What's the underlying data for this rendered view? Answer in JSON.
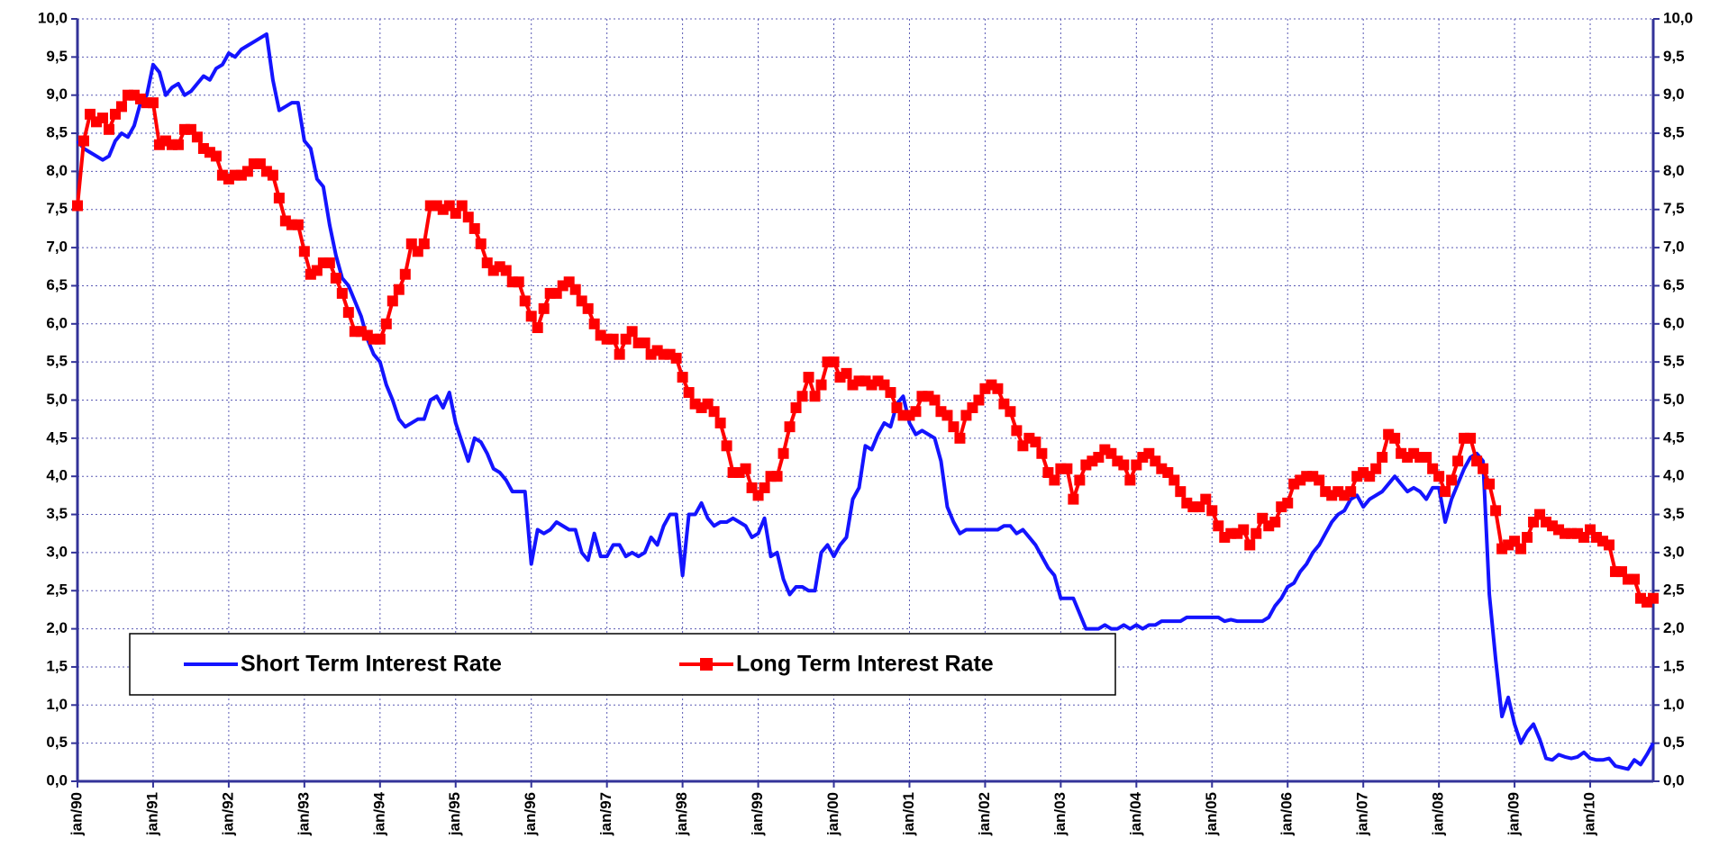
{
  "chart_data": {
    "type": "line",
    "categories": [
      "jan/90",
      null,
      null,
      null,
      null,
      null,
      null,
      null,
      null,
      null,
      null,
      null,
      "jan/91",
      null,
      null,
      null,
      null,
      null,
      null,
      null,
      null,
      null,
      null,
      null,
      "jan/92",
      null,
      null,
      null,
      null,
      null,
      null,
      null,
      null,
      null,
      null,
      null,
      "jan/93",
      null,
      null,
      null,
      null,
      null,
      null,
      null,
      null,
      null,
      null,
      null,
      "jan/94",
      null,
      null,
      null,
      null,
      null,
      null,
      null,
      null,
      null,
      null,
      null,
      "jan/95",
      null,
      null,
      null,
      null,
      null,
      null,
      null,
      null,
      null,
      null,
      null,
      "jan/96",
      null,
      null,
      null,
      null,
      null,
      null,
      null,
      null,
      null,
      null,
      null,
      "jan/97",
      null,
      null,
      null,
      null,
      null,
      null,
      null,
      null,
      null,
      null,
      null,
      "jan/98",
      null,
      null,
      null,
      null,
      null,
      null,
      null,
      null,
      null,
      null,
      null,
      "jan/99",
      null,
      null,
      null,
      null,
      null,
      null,
      null,
      null,
      null,
      null,
      null,
      "jan/00",
      null,
      null,
      null,
      null,
      null,
      null,
      null,
      null,
      null,
      null,
      null,
      "jan/01",
      null,
      null,
      null,
      null,
      null,
      null,
      null,
      null,
      null,
      null,
      null,
      "jan/02",
      null,
      null,
      null,
      null,
      null,
      null,
      null,
      null,
      null,
      null,
      null,
      "jan/03",
      null,
      null,
      null,
      null,
      null,
      null,
      null,
      null,
      null,
      null,
      null,
      "jan/04",
      null,
      null,
      null,
      null,
      null,
      null,
      null,
      null,
      null,
      null,
      null,
      "jan/05",
      null,
      null,
      null,
      null,
      null,
      null,
      null,
      null,
      null,
      null,
      null,
      "jan/06",
      null,
      null,
      null,
      null,
      null,
      null,
      null,
      null,
      null,
      null,
      null,
      "jan/07",
      null,
      null,
      null,
      null,
      null,
      null,
      null,
      null,
      null,
      null,
      null,
      "jan/08",
      null,
      null,
      null,
      null,
      null,
      null,
      null,
      null,
      null,
      null,
      null,
      "jan/09",
      null,
      null,
      null,
      null,
      null,
      null,
      null,
      null,
      null,
      null,
      null,
      "jan/10",
      null,
      null,
      null,
      null,
      null,
      null,
      null,
      null,
      null,
      null
    ],
    "series": [
      {
        "name": "Short Term Interest Rate",
        "color": "#1414ff",
        "marker": "none",
        "values": [
          8.4,
          8.3,
          8.25,
          8.2,
          8.15,
          8.2,
          8.4,
          8.5,
          8.45,
          8.6,
          8.9,
          9.0,
          9.4,
          9.3,
          9.0,
          9.1,
          9.15,
          9.0,
          9.05,
          9.15,
          9.25,
          9.2,
          9.35,
          9.4,
          9.55,
          9.5,
          9.6,
          9.65,
          9.7,
          9.75,
          9.8,
          9.2,
          8.8,
          8.85,
          8.9,
          8.9,
          8.4,
          8.3,
          7.9,
          7.8,
          7.3,
          6.9,
          6.6,
          6.5,
          6.3,
          6.1,
          5.8,
          5.6,
          5.5,
          5.2,
          5.0,
          4.75,
          4.65,
          4.7,
          4.75,
          4.75,
          5.0,
          5.05,
          4.9,
          5.1,
          4.7,
          4.45,
          4.2,
          4.5,
          4.45,
          4.3,
          4.1,
          4.05,
          3.95,
          3.8,
          3.8,
          3.8,
          2.85,
          3.3,
          3.25,
          3.3,
          3.4,
          3.35,
          3.3,
          3.3,
          3.0,
          2.9,
          3.25,
          2.95,
          2.95,
          3.1,
          3.1,
          2.95,
          3.0,
          2.95,
          3.0,
          3.2,
          3.1,
          3.35,
          3.5,
          3.5,
          2.7,
          3.5,
          3.5,
          3.65,
          3.45,
          3.35,
          3.4,
          3.4,
          3.45,
          3.4,
          3.35,
          3.2,
          3.25,
          3.45,
          2.95,
          3.0,
          2.65,
          2.45,
          2.55,
          2.55,
          2.5,
          2.5,
          3.0,
          3.1,
          2.95,
          3.1,
          3.2,
          3.7,
          3.85,
          4.4,
          4.35,
          4.55,
          4.7,
          4.65,
          4.95,
          5.05,
          4.7,
          4.55,
          4.6,
          4.55,
          4.5,
          4.2,
          3.6,
          3.4,
          3.25,
          3.3,
          3.3,
          3.3,
          3.3,
          3.3,
          3.3,
          3.35,
          3.35,
          3.25,
          3.3,
          3.2,
          3.1,
          2.95,
          2.8,
          2.7,
          2.4,
          2.4,
          2.4,
          2.2,
          2.0,
          2.0,
          2.0,
          2.05,
          2.0,
          2.0,
          2.05,
          2.0,
          2.05,
          2.0,
          2.05,
          2.05,
          2.1,
          2.1,
          2.1,
          2.1,
          2.15,
          2.15,
          2.15,
          2.15,
          2.15,
          2.15,
          2.1,
          2.12,
          2.1,
          2.1,
          2.1,
          2.1,
          2.1,
          2.15,
          2.3,
          2.4,
          2.55,
          2.6,
          2.75,
          2.85,
          3.0,
          3.1,
          3.25,
          3.4,
          3.5,
          3.55,
          3.7,
          3.75,
          3.6,
          3.7,
          3.75,
          3.8,
          3.9,
          4.0,
          3.9,
          3.8,
          3.85,
          3.8,
          3.7,
          3.85,
          3.85,
          3.4,
          3.7,
          3.9,
          4.1,
          4.25,
          4.3,
          4.2,
          2.45,
          1.6,
          0.85,
          1.1,
          0.75,
          0.5,
          0.65,
          0.75,
          0.55,
          0.3,
          0.28,
          0.35,
          0.32,
          0.3,
          0.32,
          0.38,
          0.3,
          0.28,
          0.28,
          0.3,
          0.2,
          0.18,
          0.16,
          0.28,
          0.22,
          0.35,
          0.5
        ]
      },
      {
        "name": "Long Term Interest Rate",
        "color": "#ff0000",
        "marker": "square",
        "values": [
          7.55,
          8.4,
          8.75,
          8.65,
          8.7,
          8.55,
          8.75,
          8.85,
          9.0,
          9.0,
          8.95,
          8.9,
          8.9,
          8.35,
          8.4,
          8.35,
          8.35,
          8.55,
          8.55,
          8.45,
          8.3,
          8.25,
          8.2,
          7.95,
          7.9,
          7.95,
          7.95,
          8.0,
          8.1,
          8.1,
          8.0,
          7.95,
          7.65,
          7.35,
          7.3,
          7.3,
          6.95,
          6.65,
          6.7,
          6.8,
          6.8,
          6.6,
          6.4,
          6.15,
          5.9,
          5.9,
          5.85,
          5.8,
          5.8,
          6.0,
          6.3,
          6.45,
          6.65,
          7.05,
          6.95,
          7.05,
          7.55,
          7.55,
          7.5,
          7.55,
          7.45,
          7.55,
          7.4,
          7.25,
          7.05,
          6.8,
          6.7,
          6.75,
          6.7,
          6.55,
          6.55,
          6.3,
          6.1,
          5.95,
          6.2,
          6.4,
          6.4,
          6.5,
          6.55,
          6.45,
          6.3,
          6.2,
          6.0,
          5.85,
          5.8,
          5.8,
          5.6,
          5.8,
          5.9,
          5.75,
          5.75,
          5.6,
          5.65,
          5.6,
          5.6,
          5.55,
          5.3,
          5.1,
          4.95,
          4.9,
          4.95,
          4.85,
          4.7,
          4.4,
          4.05,
          4.05,
          4.1,
          3.85,
          3.75,
          3.85,
          4.0,
          4.0,
          4.3,
          4.65,
          4.9,
          5.05,
          5.3,
          5.05,
          5.2,
          5.5,
          5.5,
          5.3,
          5.35,
          5.2,
          5.25,
          5.25,
          5.2,
          5.25,
          5.2,
          5.1,
          4.9,
          4.8,
          4.8,
          4.85,
          5.05,
          5.05,
          5.0,
          4.85,
          4.8,
          4.65,
          4.5,
          4.8,
          4.9,
          5.0,
          5.15,
          5.2,
          5.15,
          4.95,
          4.85,
          4.6,
          4.4,
          4.5,
          4.45,
          4.3,
          4.05,
          3.95,
          4.1,
          4.1,
          3.7,
          3.95,
          4.15,
          4.2,
          4.25,
          4.35,
          4.3,
          4.2,
          4.15,
          3.95,
          4.15,
          4.25,
          4.3,
          4.2,
          4.1,
          4.05,
          3.95,
          3.8,
          3.65,
          3.6,
          3.6,
          3.7,
          3.55,
          3.35,
          3.2,
          3.25,
          3.25,
          3.3,
          3.1,
          3.25,
          3.45,
          3.35,
          3.4,
          3.6,
          3.65,
          3.9,
          3.95,
          4.0,
          4.0,
          3.95,
          3.8,
          3.75,
          3.8,
          3.75,
          3.8,
          4.0,
          4.05,
          4.0,
          4.1,
          4.25,
          4.55,
          4.5,
          4.3,
          4.25,
          4.3,
          4.25,
          4.25,
          4.1,
          4.0,
          3.8,
          3.95,
          4.2,
          4.5,
          4.5,
          4.2,
          4.1,
          3.9,
          3.55,
          3.05,
          3.1,
          3.15,
          3.05,
          3.2,
          3.4,
          3.5,
          3.4,
          3.35,
          3.3,
          3.25,
          3.25,
          3.25,
          3.2,
          3.3,
          3.2,
          3.15,
          3.1,
          2.75,
          2.75,
          2.65,
          2.65,
          2.4,
          2.35,
          2.4
        ]
      }
    ],
    "ylim": [
      0,
      10
    ],
    "yticks": [
      {
        "value": 0,
        "label": "0,0"
      },
      {
        "value": 0.5,
        "label": "0,5"
      },
      {
        "value": 1,
        "label": "1,0"
      },
      {
        "value": 1.5,
        "label": "1,5"
      },
      {
        "value": 2,
        "label": "2,0"
      },
      {
        "value": 2.5,
        "label": "2,5"
      },
      {
        "value": 3,
        "label": "3,0"
      },
      {
        "value": 3.5,
        "label": "3,5"
      },
      {
        "value": 4,
        "label": "4,0"
      },
      {
        "value": 4.5,
        "label": "4,5"
      },
      {
        "value": 5,
        "label": "5,0"
      },
      {
        "value": 5.5,
        "label": "5,5"
      },
      {
        "value": 6,
        "label": "6,0"
      },
      {
        "value": 6.5,
        "label": "6,5"
      },
      {
        "value": 7,
        "label": "7,0"
      },
      {
        "value": 7.5,
        "label": "7,5"
      },
      {
        "value": 8,
        "label": "8,0"
      },
      {
        "value": 8.5,
        "label": "8,5"
      },
      {
        "value": 9,
        "label": "9,0"
      },
      {
        "value": 9.5,
        "label": "9,5"
      },
      {
        "value": 10,
        "label": "10,0"
      }
    ],
    "y2lim": [
      0,
      10
    ],
    "y2ticks": [
      {
        "value": 0,
        "label": "0,0"
      },
      {
        "value": 0.5,
        "label": "0,5"
      },
      {
        "value": 1,
        "label": "1,0"
      },
      {
        "value": 1.5,
        "label": "1,5"
      },
      {
        "value": 2,
        "label": "2,0"
      },
      {
        "value": 2.5,
        "label": "2,5"
      },
      {
        "value": 3,
        "label": "3,0"
      },
      {
        "value": 3.5,
        "label": "3,5"
      },
      {
        "value": 4,
        "label": "4,0"
      },
      {
        "value": 4.5,
        "label": "4,5"
      },
      {
        "value": 5,
        "label": "5,0"
      },
      {
        "value": 5.5,
        "label": "5,5"
      },
      {
        "value": 6,
        "label": "6,0"
      },
      {
        "value": 6.5,
        "label": "6,5"
      },
      {
        "value": 7,
        "label": "7,0"
      },
      {
        "value": 7.5,
        "label": "7,5"
      },
      {
        "value": 8,
        "label": "8,0"
      },
      {
        "value": 8.5,
        "label": "8,5"
      },
      {
        "value": 9,
        "label": "9,0"
      },
      {
        "value": 9.5,
        "label": "9,5"
      },
      {
        "value": 10,
        "label": "10,0"
      }
    ],
    "grid": true,
    "legend": "lower left"
  }
}
